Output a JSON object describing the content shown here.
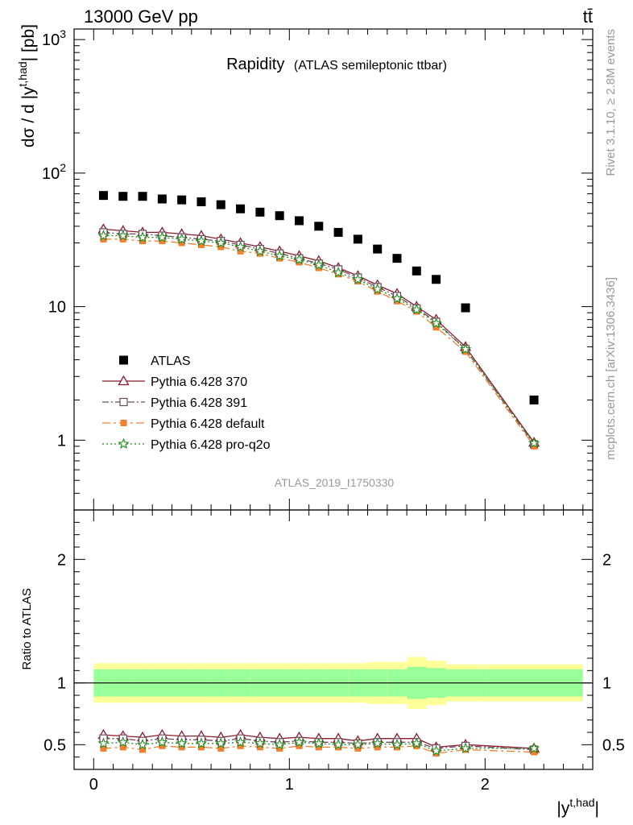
{
  "header": {
    "left": "13000 GeV pp",
    "right": "tt̄"
  },
  "plot_title": {
    "main": "Rapidity",
    "sub": "(ATLAS semileptonic ttbar)"
  },
  "side_labels": {
    "rivet": "Rivet 3.1.10, ≥ 2.8M events",
    "mcplots": "mcplots.cern.ch [arXiv:1306.3436]"
  },
  "watermark": "ATLAS_2019_I1750330",
  "axes": {
    "top_ylabel": "dσ / d |y^t,had| [pb]",
    "top_ylabel_parts": {
      "pre": "dσ / d |y",
      "sup": "t,had",
      "post": "| [pb]"
    },
    "bottom_ylabel": "Ratio to ATLAS",
    "xlabel_parts": {
      "pre": "|y",
      "sup": "t,had",
      "post": "|"
    },
    "top_yticks": [
      {
        "v": 1000,
        "base": "10",
        "exp": "3"
      },
      {
        "v": 100,
        "base": "10",
        "exp": "2"
      },
      {
        "v": 10,
        "base": "10",
        "exp": ""
      },
      {
        "v": 1,
        "base": "1",
        "exp": ""
      }
    ],
    "ratio_yticks": [
      {
        "v": 2,
        "label": "2"
      },
      {
        "v": 1,
        "label": "1"
      },
      {
        "v": 0.5,
        "label": "0.5"
      }
    ],
    "xticks": [
      {
        "v": 0,
        "label": "0"
      },
      {
        "v": 1,
        "label": "1"
      },
      {
        "v": 2,
        "label": "2"
      }
    ]
  },
  "legend": [
    {
      "name": "ATLAS",
      "color": "#000000"
    },
    {
      "name": "Pythia 6.428 370",
      "color": "#8b1a2b"
    },
    {
      "name": "Pythia 6.428 391",
      "color": "#6b4a5a"
    },
    {
      "name": "Pythia 6.428 default",
      "color": "#f08030"
    },
    {
      "name": "Pythia 6.428 pro-q2o",
      "color": "#228b22"
    }
  ],
  "chart_data": {
    "type": "scatter",
    "top_panel": {
      "ylog": true,
      "ylim": [
        0.3,
        1200
      ],
      "xlim": [
        -0.1,
        2.55
      ]
    },
    "ratio_panel": {
      "ylim": [
        0.3,
        2.4
      ],
      "xlim": [
        -0.1,
        2.55
      ]
    },
    "x": [
      0.05,
      0.15,
      0.25,
      0.35,
      0.45,
      0.55,
      0.65,
      0.75,
      0.85,
      0.95,
      1.05,
      1.15,
      1.25,
      1.35,
      1.45,
      1.55,
      1.65,
      1.75,
      1.9,
      2.25
    ],
    "x_edges": [
      0.0,
      0.1,
      0.2,
      0.3,
      0.4,
      0.5,
      0.6,
      0.7,
      0.8,
      0.9,
      1.0,
      1.1,
      1.2,
      1.3,
      1.4,
      1.5,
      1.6,
      1.7,
      1.8,
      2.0,
      2.5
    ],
    "band_inner": [
      0.11,
      0.11,
      0.11,
      0.11,
      0.11,
      0.11,
      0.11,
      0.11,
      0.11,
      0.11,
      0.11,
      0.11,
      0.11,
      0.11,
      0.11,
      0.11,
      0.13,
      0.12,
      0.11,
      0.11
    ],
    "band_outer": [
      0.16,
      0.16,
      0.16,
      0.16,
      0.16,
      0.16,
      0.16,
      0.16,
      0.16,
      0.16,
      0.16,
      0.16,
      0.16,
      0.16,
      0.17,
      0.17,
      0.21,
      0.18,
      0.15,
      0.15
    ],
    "series": [
      {
        "name": "ATLAS",
        "marker": "square",
        "values": [
          68,
          67,
          67,
          64,
          63,
          61,
          58,
          54,
          51,
          48,
          44,
          40,
          36,
          32,
          27,
          23,
          18.5,
          16,
          9.8,
          2.0
        ],
        "ratio": [
          1,
          1,
          1,
          1,
          1,
          1,
          1,
          1,
          1,
          1,
          1,
          1,
          1,
          1,
          1,
          1,
          1,
          1,
          1,
          1
        ]
      },
      {
        "name": "Pythia 6.428 370",
        "marker": "triangle",
        "dash": "",
        "values": [
          38,
          37,
          36,
          36,
          35,
          34,
          32,
          30,
          28,
          26,
          24,
          22,
          19.5,
          17,
          14.5,
          12.5,
          10,
          8,
          5,
          0.96
        ],
        "ratio": [
          0.58,
          0.57,
          0.56,
          0.58,
          0.57,
          0.57,
          0.56,
          0.58,
          0.56,
          0.55,
          0.56,
          0.55,
          0.55,
          0.53,
          0.55,
          0.55,
          0.55,
          0.48,
          0.5,
          0.47
        ]
      },
      {
        "name": "Pythia 6.428 391",
        "marker": "open-square",
        "dash": "8,3,2,3",
        "values": [
          36,
          35,
          35,
          34,
          33,
          32,
          31,
          29,
          27,
          25,
          23,
          21,
          19,
          16.5,
          14,
          12,
          9.7,
          7.7,
          4.8,
          0.93
        ],
        "ratio": [
          0.55,
          0.55,
          0.53,
          0.55,
          0.54,
          0.54,
          0.53,
          0.55,
          0.53,
          0.52,
          0.53,
          0.52,
          0.52,
          0.51,
          0.52,
          0.52,
          0.52,
          0.47,
          0.49,
          0.46
        ]
      },
      {
        "name": "Pythia 6.428 default",
        "marker": "filled-square",
        "dash": "10,4,3,4",
        "values": [
          32,
          32,
          31,
          31,
          30,
          29,
          28,
          26,
          25,
          23,
          21.5,
          19.5,
          17.5,
          15.5,
          13,
          11,
          9.2,
          7,
          4.6,
          0.9
        ],
        "ratio": [
          0.47,
          0.48,
          0.46,
          0.49,
          0.48,
          0.48,
          0.47,
          0.49,
          0.48,
          0.47,
          0.49,
          0.48,
          0.48,
          0.47,
          0.48,
          0.48,
          0.49,
          0.43,
          0.46,
          0.44
        ]
      },
      {
        "name": "Pythia 6.428 pro-q2o",
        "marker": "star",
        "dash": "2,3",
        "values": [
          34,
          34,
          33,
          33,
          32,
          31,
          30,
          28,
          26,
          24,
          22.5,
          20.5,
          18,
          16,
          13.5,
          11.5,
          9.5,
          7.5,
          4.8,
          0.95
        ],
        "ratio": [
          0.51,
          0.52,
          0.5,
          0.52,
          0.51,
          0.51,
          0.51,
          0.52,
          0.51,
          0.5,
          0.52,
          0.51,
          0.5,
          0.5,
          0.51,
          0.5,
          0.51,
          0.45,
          0.47,
          0.47
        ]
      }
    ]
  }
}
